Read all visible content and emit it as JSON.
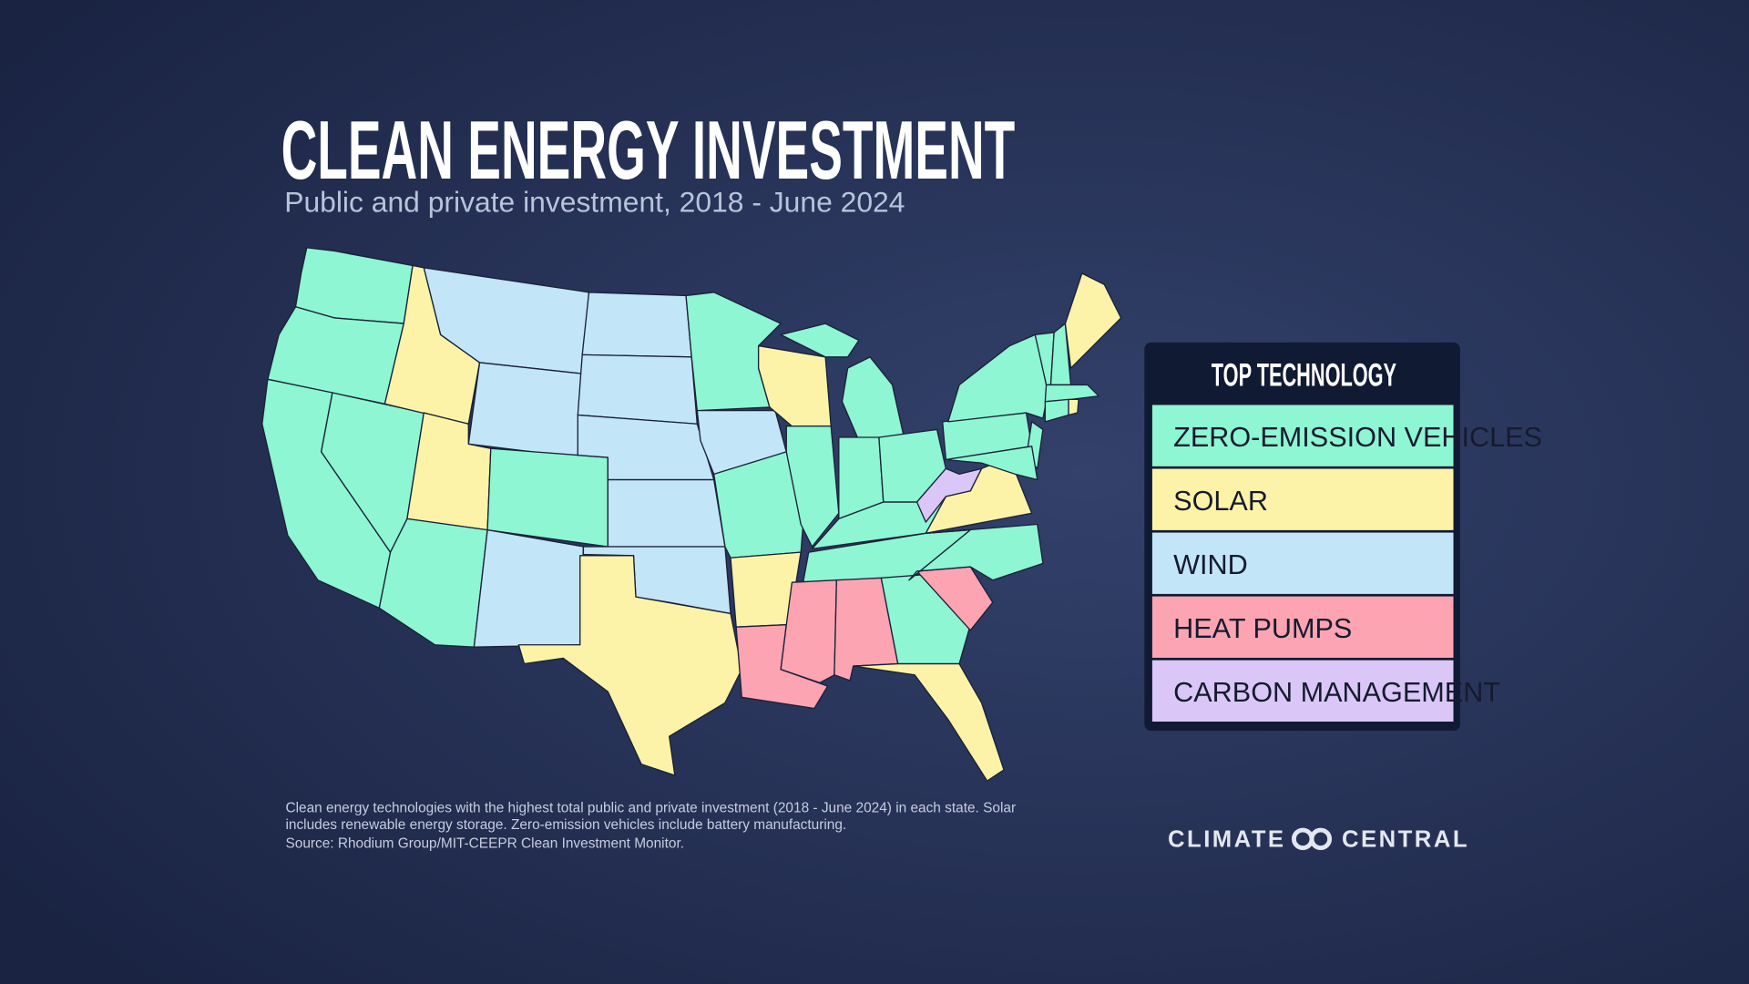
{
  "header": {
    "title": "CLEAN ENERGY INVESTMENT",
    "subtitle": "Public and private investment, 2018 - June 2024"
  },
  "legend": {
    "title": "TOP TECHNOLOGY",
    "items": [
      {
        "label": "ZERO-EMISSION VEHICLES",
        "color": "#8ef6d3"
      },
      {
        "label": "SOLAR",
        "color": "#fdf3a8"
      },
      {
        "label": "WIND",
        "color": "#c3e5f8"
      },
      {
        "label": "HEAT PUMPS",
        "color": "#fda4b3"
      },
      {
        "label": "CARBON MANAGEMENT",
        "color": "#dac7f7"
      }
    ]
  },
  "notes": [
    "Clean energy technologies with the highest total public and private investment (2018 - June 2024) in each state. Solar",
    "includes renewable energy storage. Zero-emission vehicles include battery manufacturing."
  ],
  "source": "Source: Rhodium Group/MIT-CEEPR Clean Investment Monitor.",
  "logo": {
    "left": "CLIMATE",
    "right": "CENTRAL"
  }
}
